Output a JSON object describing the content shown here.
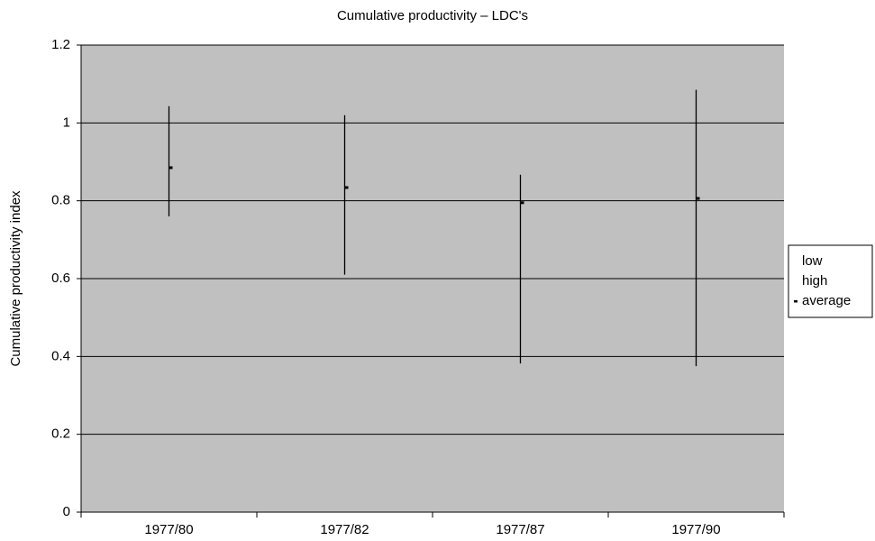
{
  "chart_data": {
    "type": "hilo",
    "title": "Cumulative productivity – LDC's",
    "y_label": "Cumulative productivity index",
    "categories": [
      "1977/80",
      "1977/82",
      "1977/87",
      "1977/90"
    ],
    "series": [
      {
        "name": "low",
        "color": "#000000",
        "marker": "none",
        "values": [
          0.76,
          0.61,
          0.382,
          0.375
        ]
      },
      {
        "name": "high",
        "color": "#000000",
        "marker": "none",
        "values": [
          1.043,
          1.02,
          0.867,
          1.085
        ]
      },
      {
        "name": "average",
        "color": "#000000",
        "marker": "dash",
        "values": [
          0.885,
          0.834,
          0.795,
          0.806
        ]
      }
    ],
    "ylim": [
      0,
      1.2
    ],
    "yticks": [
      0,
      0.2,
      0.4,
      0.6,
      0.8,
      1,
      1.2
    ],
    "grid": true,
    "plot_background": "#c0c0c0",
    "legend": "right"
  }
}
